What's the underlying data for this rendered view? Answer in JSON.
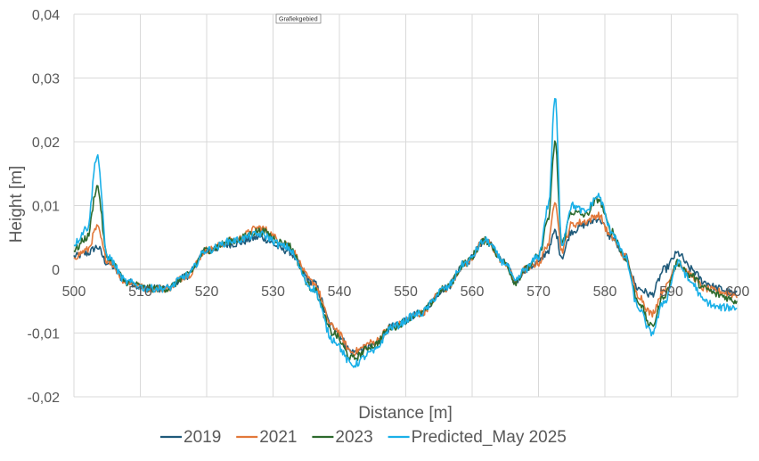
{
  "tooltip": "Grafiekgebied",
  "chart_data": {
    "type": "line",
    "title": "",
    "xlabel": "Distance [m]",
    "ylabel": "Height [m]",
    "xlim": [
      500,
      600
    ],
    "ylim": [
      -0.02,
      0.04
    ],
    "x_ticks": [
      500,
      510,
      520,
      530,
      540,
      550,
      560,
      570,
      580,
      590,
      600
    ],
    "x_tick_labels": [
      "500",
      "510",
      "520",
      "530",
      "540",
      "550",
      "560",
      "570",
      "580",
      "590",
      "600"
    ],
    "y_ticks": [
      -0.02,
      -0.01,
      0,
      0.01,
      0.02,
      0.03,
      0.04
    ],
    "y_tick_labels": [
      "-0,02",
      "-0,01",
      "0",
      "0,01",
      "0,02",
      "0,03",
      "0,04"
    ],
    "grid": true,
    "legend_position": "bottom",
    "series": [
      {
        "name": "2019",
        "color": "#1f5a7a",
        "x": [
          500,
          502,
          503.5,
          505,
          508,
          511,
          514,
          517,
          520,
          524,
          528,
          532,
          536,
          539,
          542,
          545,
          548,
          552,
          556,
          559,
          562,
          565,
          566.5,
          568,
          570,
          571.5,
          572.5,
          573.5,
          575,
          577,
          579,
          581,
          583,
          585,
          587,
          589,
          591,
          593,
          595,
          597,
          600
        ],
        "y": [
          0.002,
          0.0025,
          0.0035,
          0.001,
          -0.002,
          -0.003,
          -0.003,
          -0.001,
          0.003,
          0.004,
          0.005,
          0.003,
          -0.002,
          -0.009,
          -0.013,
          -0.012,
          -0.009,
          -0.007,
          -0.003,
          0.001,
          0.0045,
          0.001,
          -0.002,
          0.0,
          0.001,
          0.003,
          0.006,
          0.002,
          0.006,
          0.007,
          0.008,
          0.005,
          0.002,
          -0.003,
          -0.004,
          0.0,
          0.0025,
          0.0,
          -0.002,
          -0.003,
          -0.004
        ]
      },
      {
        "name": "2021",
        "color": "#e2783a",
        "x": [
          500,
          502,
          503.5,
          505,
          508,
          511,
          514,
          517,
          520,
          524,
          528,
          532,
          536,
          539,
          542,
          545,
          548,
          552,
          556,
          559,
          562,
          565,
          566.5,
          568,
          570,
          571.5,
          572.5,
          573.5,
          575,
          577,
          579,
          581,
          583,
          585,
          587,
          589,
          591,
          593,
          595,
          597,
          600
        ],
        "y": [
          0.002,
          0.003,
          0.0065,
          0.0015,
          -0.002,
          -0.003,
          -0.003,
          -0.001,
          0.003,
          0.0045,
          0.0065,
          0.004,
          -0.002,
          -0.009,
          -0.013,
          -0.0115,
          -0.009,
          -0.007,
          -0.003,
          0.001,
          0.0045,
          0.001,
          -0.002,
          0.0,
          0.001,
          0.004,
          0.011,
          0.003,
          0.007,
          0.0075,
          0.0085,
          0.005,
          0.002,
          -0.004,
          -0.007,
          -0.003,
          0.001,
          -0.001,
          -0.003,
          -0.0035,
          -0.004
        ]
      },
      {
        "name": "2023",
        "color": "#2d6a2d",
        "x": [
          500,
          502,
          503.5,
          505,
          508,
          511,
          514,
          517,
          520,
          524,
          528,
          532,
          536,
          539,
          542,
          545,
          548,
          552,
          556,
          559,
          562,
          565,
          566.5,
          568,
          570,
          571.5,
          572.5,
          573.5,
          575,
          577,
          579,
          581,
          583,
          585,
          587,
          589,
          591,
          593,
          595,
          597,
          600
        ],
        "y": [
          0.003,
          0.005,
          0.013,
          0.002,
          -0.002,
          -0.003,
          -0.003,
          -0.001,
          0.003,
          0.0045,
          0.006,
          0.004,
          -0.003,
          -0.01,
          -0.014,
          -0.012,
          -0.009,
          -0.007,
          -0.003,
          0.001,
          0.0045,
          0.001,
          -0.002,
          0.0,
          0.002,
          0.008,
          0.02,
          0.004,
          0.009,
          0.0085,
          0.011,
          0.006,
          0.002,
          -0.005,
          -0.009,
          -0.004,
          0.001,
          -0.001,
          -0.003,
          -0.004,
          -0.005
        ]
      },
      {
        "name": "Predicted_May 2025",
        "color": "#1ab0e8",
        "x": [
          500,
          502,
          503.5,
          505,
          508,
          511,
          514,
          517,
          520,
          524,
          528,
          532,
          536,
          539,
          542,
          545,
          548,
          552,
          556,
          559,
          562,
          565,
          566.5,
          568,
          570,
          571.5,
          572.5,
          573.5,
          575,
          577,
          579,
          581,
          583,
          585,
          587,
          589,
          591,
          593,
          595,
          597,
          600
        ],
        "y": [
          0.004,
          0.0065,
          0.018,
          0.002,
          -0.002,
          -0.003,
          -0.003,
          -0.001,
          0.003,
          0.0045,
          0.0055,
          0.0035,
          -0.003,
          -0.011,
          -0.015,
          -0.013,
          -0.009,
          -0.007,
          -0.003,
          0.001,
          0.0045,
          0.001,
          -0.002,
          0.0,
          0.002,
          0.01,
          0.027,
          0.004,
          0.01,
          0.009,
          0.0115,
          0.006,
          0.002,
          -0.006,
          -0.01,
          -0.005,
          0.001,
          -0.002,
          -0.005,
          -0.006,
          -0.006
        ]
      }
    ]
  }
}
